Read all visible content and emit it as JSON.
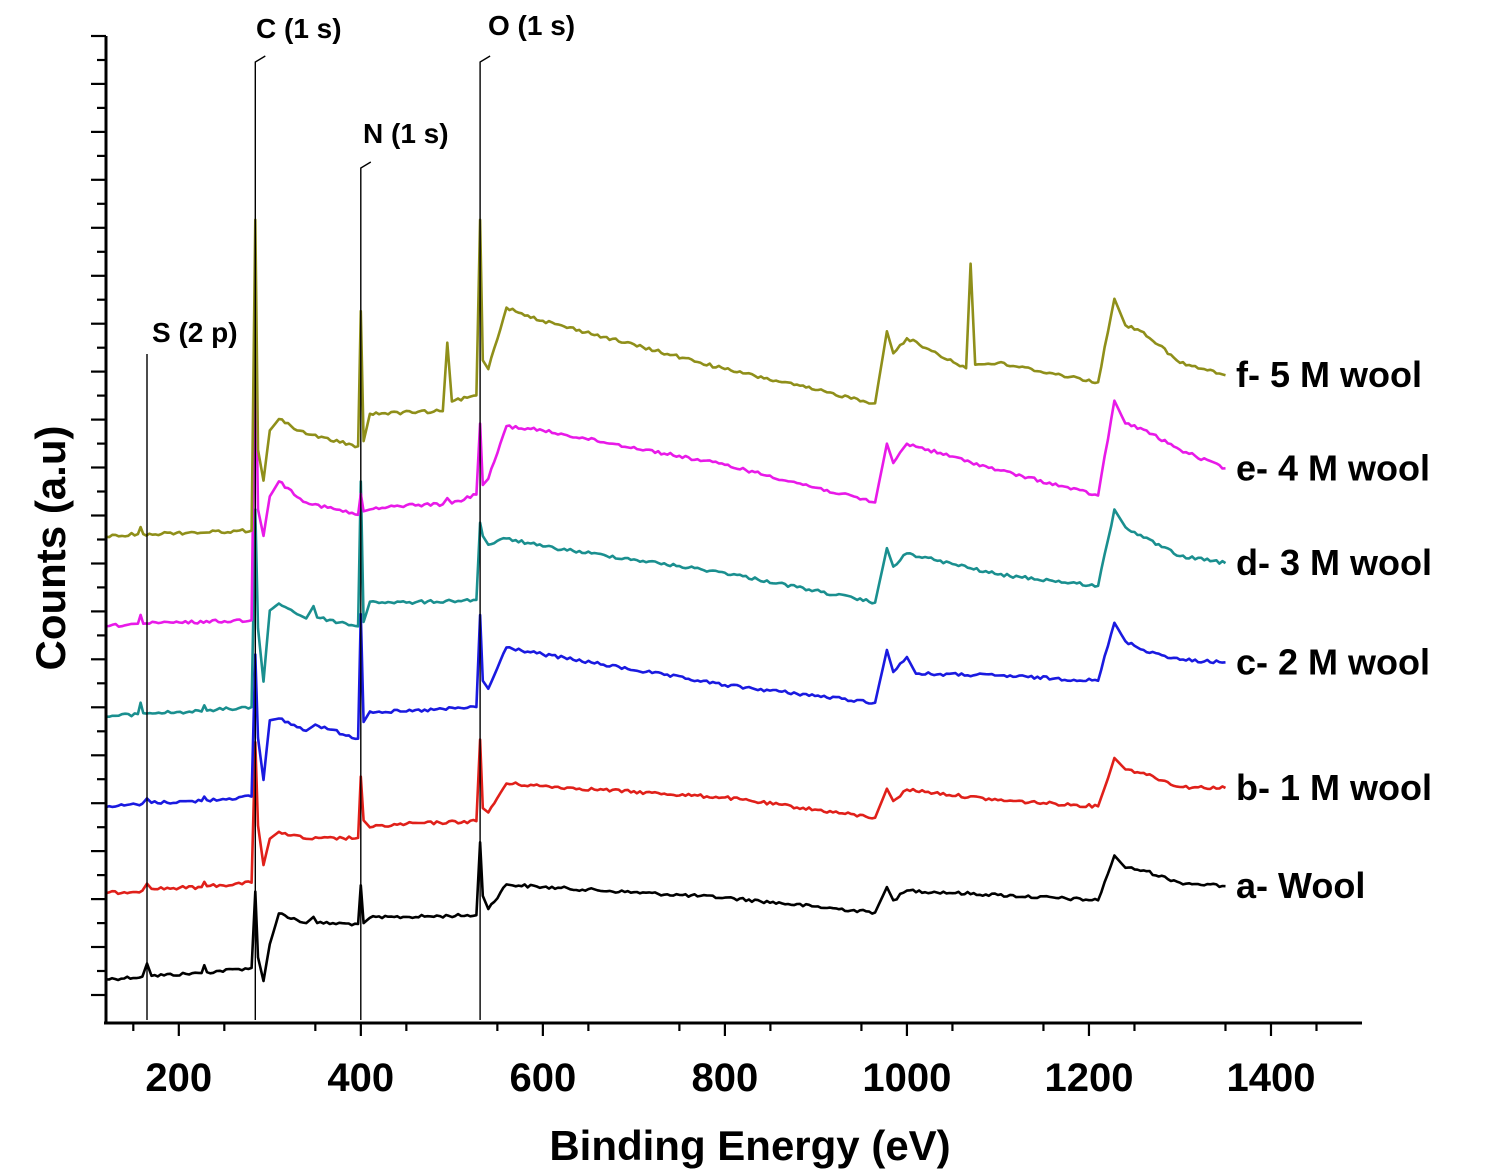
{
  "chart_data": {
    "type": "line",
    "xlabel": "Binding Energy (eV)",
    "ylabel": "Counts (a.u)",
    "xlim": [
      120,
      1500
    ],
    "ylim": [
      0,
      100
    ],
    "x_ticks": [
      200,
      400,
      600,
      800,
      1000,
      1200,
      1400
    ],
    "y_tick_count": 21,
    "y_tick_labels_shown": false,
    "grid": false,
    "legend": "labels at right end of each curve",
    "annotations": [
      {
        "text": "S (2 p)",
        "x": 165
      },
      {
        "text": "C (1 s)",
        "x": 284
      },
      {
        "text": "N (1 s)",
        "x": 400
      },
      {
        "text": "O (1 s)",
        "x": 531
      }
    ],
    "series": [
      {
        "name": "a- Wool",
        "color": "#000000",
        "x": [
          120,
          160,
          165,
          170,
          225,
          228,
          231,
          280,
          284,
          287,
          293,
          300,
          310,
          340,
          348,
          352,
          397,
          400,
          403,
          410,
          450,
          527,
          531,
          534,
          540,
          560,
          600,
          800,
          965,
          978,
          985,
          1000,
          1100,
          1210,
          1228,
          1240,
          1260,
          1300,
          1350
        ],
        "y": [
          3.5,
          3.8,
          5.3,
          3.9,
          4.2,
          5.1,
          4.3,
          4.8,
          13.5,
          6.0,
          3.3,
          7.5,
          11.0,
          9.9,
          10.6,
          9.9,
          9.8,
          14.2,
          9.9,
          10.5,
          10.6,
          10.8,
          19.1,
          13.0,
          11.5,
          14.3,
          14.0,
          12.8,
          11.1,
          14.0,
          12.5,
          13.6,
          13.1,
          12.5,
          17.6,
          16.2,
          15.9,
          14.5,
          14.1
        ]
      },
      {
        "name": "b- 1 M wool",
        "color": "#e0201a",
        "x": [
          120,
          160,
          165,
          170,
          225,
          228,
          231,
          280,
          284,
          287,
          293,
          300,
          310,
          340,
          397,
          400,
          403,
          410,
          450,
          527,
          531,
          534,
          540,
          560,
          600,
          800,
          965,
          978,
          985,
          1000,
          1100,
          1210,
          1228,
          1240,
          1260,
          1300,
          1350
        ],
        "y": [
          13.3,
          13.6,
          14.4,
          13.8,
          14.0,
          14.6,
          14.1,
          14.5,
          30.5,
          21.0,
          16.5,
          19.5,
          20.3,
          19.5,
          19.6,
          26.6,
          21.6,
          20.8,
          21.2,
          21.5,
          30.8,
          23.0,
          22.5,
          25.8,
          25.5,
          24.2,
          21.9,
          25.2,
          23.8,
          25.1,
          23.9,
          23.2,
          28.7,
          27.4,
          27.0,
          25.4,
          25.3
        ]
      },
      {
        "name": "c- 2 M wool",
        "color": "#1a1ae0",
        "x": [
          120,
          160,
          165,
          170,
          225,
          228,
          231,
          280,
          284,
          287,
          293,
          300,
          310,
          340,
          350,
          397,
          400,
          403,
          410,
          450,
          527,
          531,
          534,
          540,
          560,
          600,
          800,
          965,
          978,
          985,
          1000,
          1010,
          1100,
          1210,
          1228,
          1240,
          1260,
          1300,
          1350
        ],
        "y": [
          23.1,
          23.5,
          24.1,
          23.6,
          23.8,
          24.3,
          23.9,
          24.3,
          40.5,
          31.0,
          26.2,
          33.0,
          33.2,
          31.8,
          32.5,
          30.9,
          45.1,
          32.8,
          34.0,
          34.0,
          34.5,
          45.0,
          37.5,
          36.6,
          41.3,
          40.5,
          37.0,
          35.0,
          41.0,
          38.5,
          40.2,
          38.3,
          38.1,
          37.5,
          44.1,
          42.0,
          41.0,
          39.9,
          39.6
        ]
      },
      {
        "name": "d- 3 M wool",
        "color": "#1a8f8f",
        "x": [
          120,
          155,
          158,
          161,
          225,
          228,
          231,
          280,
          284,
          287,
          293,
          300,
          310,
          340,
          348,
          352,
          397,
          400,
          403,
          410,
          450,
          527,
          531,
          534,
          540,
          560,
          600,
          800,
          965,
          978,
          985,
          1000,
          1100,
          1210,
          1228,
          1240,
          1260,
          1300,
          1350
        ],
        "y": [
          33.4,
          33.7,
          35.0,
          33.8,
          34.0,
          34.7,
          34.1,
          34.5,
          57.0,
          43.5,
          37.4,
          45.5,
          46.3,
          44.6,
          46.0,
          44.7,
          43.7,
          60.2,
          44.2,
          46.5,
          46.4,
          46.7,
          55.5,
          54.0,
          53.0,
          53.7,
          52.8,
          49.8,
          46.4,
          52.6,
          50.5,
          52.0,
          49.6,
          48.3,
          57.0,
          55.0,
          53.8,
          51.7,
          50.9
        ]
      },
      {
        "name": "e- 4 M wool",
        "color": "#e81ae8",
        "x": [
          120,
          155,
          158,
          161,
          280,
          284,
          287,
          293,
          300,
          310,
          340,
          397,
          400,
          403,
          410,
          450,
          490,
          495,
          500,
          527,
          531,
          534,
          540,
          560,
          600,
          800,
          965,
          978,
          985,
          1000,
          1100,
          1210,
          1228,
          1240,
          1260,
          1300,
          1350
        ],
        "y": [
          43.7,
          44.0,
          45.0,
          44.0,
          44.4,
          77.8,
          57.0,
          54.0,
          58.5,
          60.2,
          57.8,
          56.4,
          58.8,
          56.8,
          57.0,
          57.5,
          57.6,
          58.3,
          57.7,
          58.7,
          66.8,
          59.8,
          60.5,
          66.5,
          66.0,
          62.1,
          57.8,
          64.5,
          62.3,
          64.5,
          61.5,
          58.6,
          69.4,
          66.8,
          66.1,
          63.8,
          61.7
        ]
      },
      {
        "name": "f- 5 M wool",
        "color": "#8f8f1a",
        "x": [
          120,
          155,
          158,
          161,
          280,
          284,
          287,
          293,
          300,
          310,
          340,
          397,
          400,
          403,
          410,
          490,
          495,
          500,
          527,
          531,
          534,
          540,
          560,
          600,
          800,
          965,
          978,
          985,
          1000,
          1065,
          1070,
          1075,
          1100,
          1210,
          1228,
          1240,
          1260,
          1300,
          1350
        ],
        "y": [
          53.9,
          54.2,
          55.0,
          54.2,
          54.6,
          90.0,
          63.8,
          60.3,
          66.0,
          67.3,
          65.6,
          64.2,
          79.6,
          64.8,
          67.9,
          68.2,
          76.0,
          69.3,
          70.0,
          90.0,
          74.0,
          73.0,
          80.0,
          78.5,
          73.0,
          69.1,
          77.3,
          74.8,
          76.5,
          73.1,
          85.0,
          73.5,
          73.7,
          71.5,
          81.0,
          78.0,
          77.2,
          73.7,
          72.3
        ]
      }
    ]
  }
}
